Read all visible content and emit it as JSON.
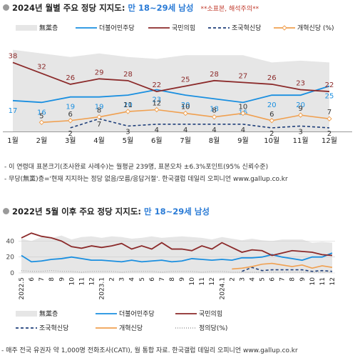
{
  "top": {
    "title": "2024년 월별 주요 정당 지지도:",
    "subtitle": "만 18~29세 남성",
    "warning": "**소표본, 해석주의**",
    "notes": [
      "- 이 연령대 표본크기(조사완료 사례수)는 월평균 239명, 표본오차 ±6.3%포인트(95% 신뢰수준)",
      "- 무당(無黨)층='현재 지지하는 정당 없음/모름/응답거절'. 한국갤럽 데일리 오피니언 www.gallup.co.kr"
    ]
  },
  "bottom": {
    "title": "2022년 5월 이후 주요 정당 지지도:",
    "subtitle": "만 18~29세 남성",
    "footer": "- 매주 전국 유권자 약 1,000명 전화조사(CATI), 월 통합 자료. 한국갤럽 데일리 오피니언 www.gallup.co.kr"
  },
  "colors": {
    "nonpartisan": "#e6e6e6",
    "democratic": "#1a8fe0",
    "ppp": "#8b2a2a",
    "rebuilding": "#1f3f7a",
    "reform": "#f0a050",
    "justice": "#aaaaaa"
  },
  "chart_data": [
    {
      "type": "line",
      "categories": [
        "1월",
        "2월",
        "3월",
        "4월",
        "5월",
        "6월",
        "7월",
        "8월",
        "9월",
        "10월",
        "11월",
        "12월"
      ],
      "legend": [
        "無黨층",
        "더불어민주당",
        "국민의힘",
        "조국혁신당",
        "개혁신당 (%)"
      ],
      "series": [
        {
          "name": "無黨층",
          "kind": "area",
          "values": [
            45,
            43,
            41,
            43,
            41,
            40,
            42,
            42,
            42,
            38,
            39,
            38
          ]
        },
        {
          "name": "더불어민주당",
          "values": [
            17,
            16,
            19,
            19,
            20,
            23,
            20,
            18,
            16,
            20,
            20,
            25
          ]
        },
        {
          "name": "국민의힘",
          "values": [
            38,
            32,
            26,
            29,
            28,
            22,
            25,
            28,
            27,
            26,
            23,
            22
          ]
        },
        {
          "name": "조국혁신당",
          "values": [
            null,
            null,
            2,
            7,
            3,
            4,
            4,
            4,
            4,
            2,
            3,
            2
          ]
        },
        {
          "name": "개혁신당",
          "values": [
            null,
            5,
            6,
            8,
            11,
            12,
            10,
            8,
            10,
            6,
            9,
            7
          ]
        }
      ],
      "ylim": [
        0,
        48
      ]
    },
    {
      "type": "line",
      "x_labels": [
        "2022.5",
        "6",
        "7",
        "8",
        "9",
        "10",
        "11",
        "12",
        "2023.1",
        "2",
        "3",
        "4",
        "5",
        "6",
        "7",
        "8",
        "9",
        "10",
        "11",
        "12",
        "2024.1",
        "2",
        "3",
        "4",
        "5",
        "6",
        "7",
        "8",
        "9",
        "10",
        "11",
        "12"
      ],
      "yticks": [
        0,
        20,
        40
      ],
      "legend": [
        "無黨층",
        "더불어민주당",
        "국민의힘",
        "조국혁신당",
        "개혁신당",
        "정의당(%)"
      ],
      "ylim": [
        0,
        52
      ],
      "series": [
        {
          "name": "無黨층",
          "kind": "area",
          "values": [
            43,
            40,
            45,
            44,
            47,
            42,
            45,
            46,
            44,
            46,
            45,
            43,
            44,
            46,
            44,
            45,
            46,
            45,
            44,
            42,
            45,
            43,
            41,
            43,
            41,
            40,
            42,
            42,
            42,
            38,
            39,
            38
          ]
        },
        {
          "name": "더불어민주당",
          "values": [
            22,
            14,
            15,
            17,
            18,
            20,
            18,
            16,
            16,
            15,
            14,
            16,
            14,
            15,
            16,
            14,
            15,
            18,
            17,
            16,
            17,
            16,
            19,
            19,
            20,
            23,
            20,
            18,
            16,
            20,
            20,
            25
          ]
        },
        {
          "name": "국민의힘",
          "values": [
            44,
            50,
            46,
            44,
            40,
            33,
            31,
            34,
            32,
            34,
            37,
            30,
            34,
            30,
            38,
            30,
            30,
            28,
            34,
            30,
            38,
            32,
            26,
            29,
            28,
            22,
            25,
            28,
            27,
            26,
            23,
            22
          ]
        },
        {
          "name": "조국혁신당",
          "values": [
            null,
            null,
            null,
            null,
            null,
            null,
            null,
            null,
            null,
            null,
            null,
            null,
            null,
            null,
            null,
            null,
            null,
            null,
            null,
            null,
            null,
            null,
            2,
            7,
            3,
            4,
            4,
            4,
            4,
            2,
            3,
            2
          ]
        },
        {
          "name": "개혁신당",
          "values": [
            null,
            null,
            null,
            null,
            null,
            null,
            null,
            null,
            null,
            null,
            null,
            null,
            null,
            null,
            null,
            null,
            null,
            null,
            null,
            null,
            null,
            5,
            6,
            8,
            11,
            12,
            10,
            8,
            10,
            6,
            9,
            7
          ]
        },
        {
          "name": "정의당",
          "values": [
            3,
            2,
            2,
            3,
            2,
            2,
            1,
            2,
            2,
            2,
            1,
            2,
            2,
            2,
            1,
            2,
            2,
            2,
            1,
            2,
            2,
            1,
            1,
            1,
            1,
            1,
            1,
            1,
            1,
            1,
            1,
            1
          ]
        }
      ]
    }
  ]
}
